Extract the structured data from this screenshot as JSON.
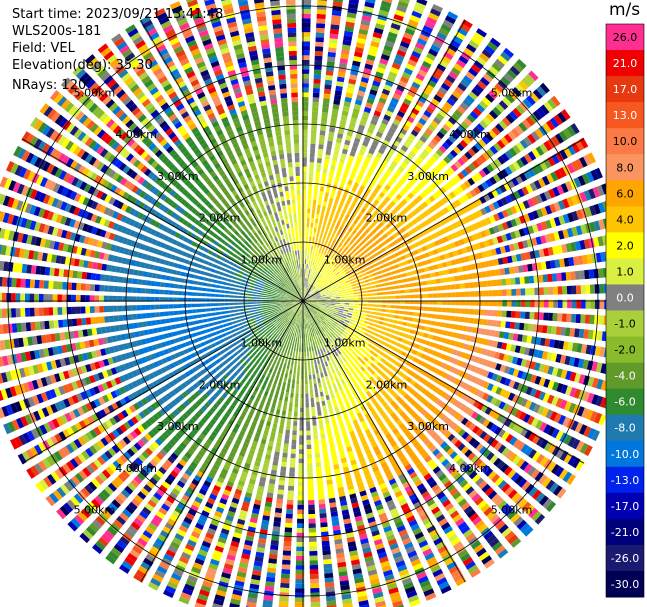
{
  "header": {
    "start_time": "Start time: 2023/09/21 13:41:48",
    "instrument": "WLS200s-181",
    "field": "Field: VEL",
    "elevation": "Elevation(deg): 35.30",
    "nrays": "NRays: 120"
  },
  "colorbar": {
    "unit": "m/s",
    "levels": [
      {
        "label": "26.0",
        "color": "#ff2f92"
      },
      {
        "label": "21.0",
        "color": "#f00000"
      },
      {
        "label": "17.0",
        "color": "#e83810"
      },
      {
        "label": "13.0",
        "color": "#f75820"
      },
      {
        "label": "10.0",
        "color": "#fb7a45"
      },
      {
        "label": "8.0",
        "color": "#fa9560"
      },
      {
        "label": "6.0",
        "color": "#ffa500"
      },
      {
        "label": "4.0",
        "color": "#ffc400"
      },
      {
        "label": "2.0",
        "color": "#ffff00"
      },
      {
        "label": "1.0",
        "color": "#d9f040"
      },
      {
        "label": "0.0",
        "color": "#808080"
      },
      {
        "label": "-1.0",
        "color": "#a9d03a"
      },
      {
        "label": "-2.0",
        "color": "#8abb2a"
      },
      {
        "label": "-4.0",
        "color": "#5f9a2a"
      },
      {
        "label": "-6.0",
        "color": "#2f8a2f"
      },
      {
        "label": "-8.0",
        "color": "#1f7ab0"
      },
      {
        "label": "-10.0",
        "color": "#0077dd"
      },
      {
        "label": "-13.0",
        "color": "#0022ee"
      },
      {
        "label": "-17.0",
        "color": "#0000b0"
      },
      {
        "label": "-21.0",
        "color": "#00007a"
      },
      {
        "label": "-26.0",
        "color": "#1a1a70"
      },
      {
        "label": "-30.0",
        "color": "#000055"
      }
    ]
  },
  "chart_data": {
    "type": "heatmap",
    "projection": "polar PPI",
    "field": "VEL",
    "nrays": 120,
    "range_rings_km": [
      1,
      2,
      3,
      4,
      5
    ],
    "ring_labels": [
      "1.00km",
      "2.00km",
      "3.00km",
      "4.00km",
      "5.00km"
    ],
    "max_range_km": 5.5,
    "valid_range_km": 3.4,
    "pattern": "dipole: positive (toward yellow/orange) to the east, negative (green/blue) to the west, with the zero line bending through the centre; noisy multicolour returns beyond ~3.4 km",
    "color_scale_ms": [
      -30,
      26
    ]
  }
}
